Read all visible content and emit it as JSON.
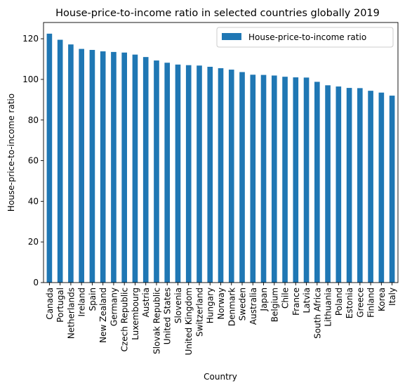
{
  "chart_data": {
    "type": "bar",
    "title": "House-price-to-income ratio in selected countries globally 2019",
    "xlabel": "Country",
    "ylabel": "House-price-to-income ratio",
    "ylim": [
      0,
      128
    ],
    "yticks": [
      0,
      20,
      40,
      60,
      80,
      100,
      120
    ],
    "grid": false,
    "legend_position": "top-right",
    "bar_color": "#1f77b4",
    "categories": [
      "Canada",
      "Portugal",
      "Netherlands",
      "Ireland",
      "Spain",
      "New Zealand",
      "Germany",
      "Czech Republic",
      "Luxembourg",
      "Austria",
      "Slovak Republic",
      "United States",
      "Slovenia",
      "United Kingdom",
      "Switzerland",
      "Hungary",
      "Norway",
      "Denmark",
      "Sweden",
      "Australia",
      "Japan",
      "Belgium",
      "Chile",
      "France",
      "Latvia",
      "South Africa",
      "Lithuania",
      "Poland",
      "Estonia",
      "Greece",
      "Finland",
      "Korea",
      "Italy"
    ],
    "series": [
      {
        "name": "House-price-to-income ratio",
        "values": [
          122.5,
          119.5,
          117.2,
          115.0,
          114.5,
          113.8,
          113.5,
          113.2,
          112.2,
          111.0,
          109.3,
          108.2,
          107.3,
          107.0,
          106.8,
          106.2,
          105.5,
          104.8,
          103.6,
          102.3,
          102.2,
          101.9,
          101.3,
          101.0,
          100.9,
          98.8,
          97.1,
          96.5,
          95.8,
          95.7,
          94.4,
          93.5,
          92.0
        ]
      }
    ]
  }
}
